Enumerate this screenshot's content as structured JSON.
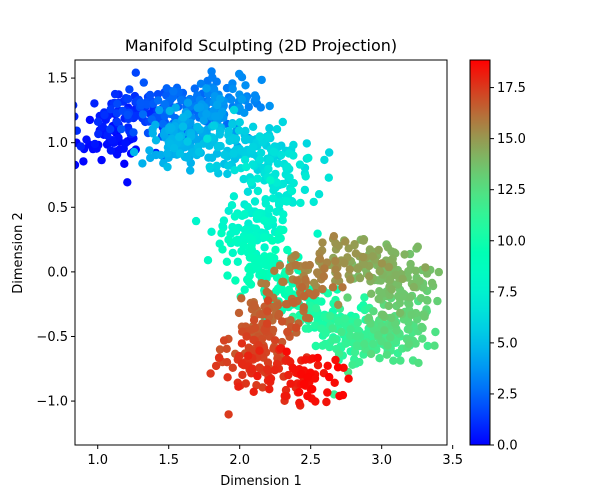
{
  "chart_data": {
    "type": "scatter",
    "title": "Manifold Sculpting (2D Projection)",
    "xlabel": "Dimension 1",
    "ylabel": "Dimension 2",
    "xlim": [
      0.84,
      3.46
    ],
    "ylim": [
      -1.34,
      1.64
    ],
    "xticks": [
      1.0,
      1.5,
      2.0,
      2.5,
      3.0,
      3.5
    ],
    "xtick_labels": [
      "1.0",
      "1.5",
      "2.0",
      "2.5",
      "3.0",
      "3.5"
    ],
    "yticks": [
      -1.0,
      -0.5,
      0.0,
      0.5,
      1.0,
      1.5
    ],
    "ytick_labels": [
      "−1.0",
      "−0.5",
      "0.0",
      "0.5",
      "1.0",
      "1.5"
    ],
    "grid": false,
    "colormap": "rainbow",
    "colorbar": {
      "range": [
        0.0,
        18.85
      ],
      "ticks": [
        0.0,
        2.5,
        5.0,
        7.5,
        10.0,
        12.5,
        15.0,
        17.5
      ],
      "tick_labels": [
        "0.0",
        "2.5",
        "5.0",
        "7.5",
        "10.0",
        "12.5",
        "15.0",
        "17.5"
      ]
    },
    "point_count": 1500,
    "manifold_path": [
      {
        "t": 0.0,
        "x": 1.0,
        "y": 0.95
      },
      {
        "t": 1.0,
        "x": 1.18,
        "y": 1.2
      },
      {
        "t": 2.5,
        "x": 1.6,
        "y": 1.3
      },
      {
        "t": 3.5,
        "x": 2.0,
        "y": 1.35
      },
      {
        "t": 4.5,
        "x": 1.5,
        "y": 1.0
      },
      {
        "t": 6.0,
        "x": 2.25,
        "y": 0.95
      },
      {
        "t": 7.0,
        "x": 2.3,
        "y": 0.65
      },
      {
        "t": 8.0,
        "x": 2.05,
        "y": 0.3
      },
      {
        "t": 9.0,
        "x": 2.15,
        "y": 0.05
      },
      {
        "t": 10.0,
        "x": 2.5,
        "y": -0.3
      },
      {
        "t": 11.5,
        "x": 2.9,
        "y": -0.55
      },
      {
        "t": 12.5,
        "x": 3.1,
        "y": -0.5
      },
      {
        "t": 13.5,
        "x": 3.15,
        "y": -0.15
      },
      {
        "t": 14.5,
        "x": 2.95,
        "y": 0.15
      },
      {
        "t": 15.5,
        "x": 2.55,
        "y": 0.05
      },
      {
        "t": 16.5,
        "x": 2.2,
        "y": -0.35
      },
      {
        "t": 17.5,
        "x": 2.1,
        "y": -0.75
      },
      {
        "t": 18.85,
        "x": 2.6,
        "y": -0.85
      }
    ],
    "spread_x": 0.13,
    "spread_y": 0.1
  }
}
